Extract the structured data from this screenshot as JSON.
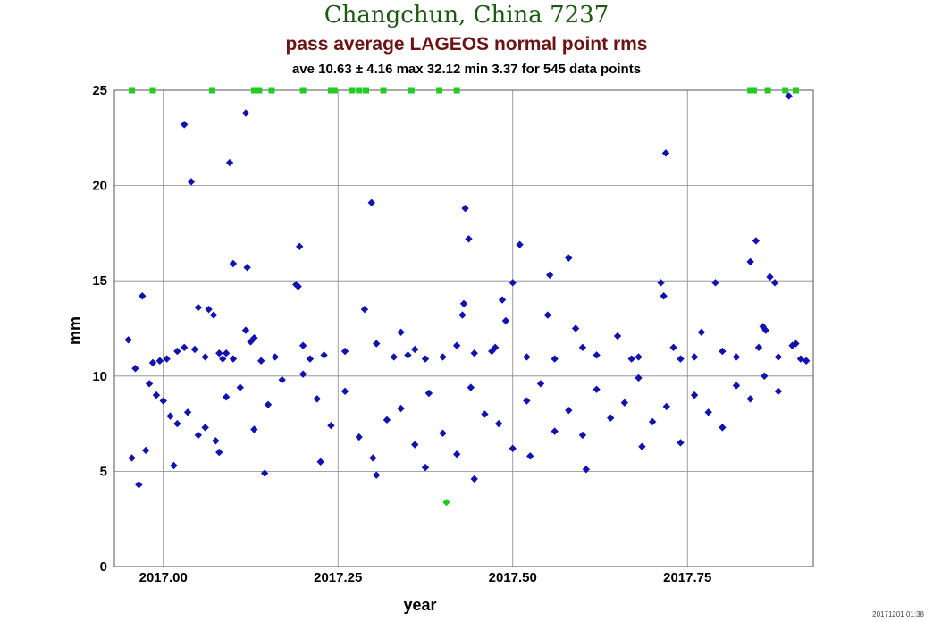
{
  "chart_data": {
    "type": "scatter",
    "title": "Changchun, China 7237",
    "subtitle": "pass average LAGEOS normal point rms",
    "stats": "ave 10.63 ± 4.16 max 32.12 min 3.37 for 545 data points",
    "xlabel": "year",
    "ylabel": "mm",
    "xlim": [
      2016.93,
      2017.93
    ],
    "ylim": [
      0,
      25
    ],
    "x_ticks": [
      "2017.00",
      "2017.25",
      "2017.50",
      "2017.75"
    ],
    "y_ticks": [
      "0",
      "5",
      "10",
      "15",
      "20",
      "25"
    ],
    "grid": true,
    "timestamp": "20171201 01:38",
    "colors": {
      "points": "#1212b0",
      "offscale": "#22cc22",
      "title": "#1c5a12",
      "subtitle": "#6b1414",
      "grid": "#888888"
    },
    "series": [
      {
        "marker": "diamond",
        "points": [
          [
            2016.95,
            11.9
          ],
          [
            2016.97,
            14.2
          ],
          [
            2016.985,
            10.7
          ],
          [
            2016.995,
            10.8
          ],
          [
            2017.005,
            10.9
          ],
          [
            2017.02,
            11.3
          ],
          [
            2017.03,
            11.5
          ],
          [
            2017.05,
            13.6
          ],
          [
            2017.065,
            13.5
          ],
          [
            2017.072,
            13.2
          ],
          [
            2017.045,
            11.4
          ],
          [
            2017.06,
            11.0
          ],
          [
            2017.03,
            23.2
          ],
          [
            2017.04,
            20.2
          ],
          [
            2017.08,
            11.2
          ],
          [
            2017.085,
            10.9
          ],
          [
            2017.095,
            21.2
          ],
          [
            2017.1,
            15.9
          ],
          [
            2017.118,
            23.8
          ],
          [
            2017.12,
            15.7
          ],
          [
            2017.125,
            11.8
          ],
          [
            2017.13,
            12.0
          ],
          [
            2017.118,
            12.4
          ],
          [
            2017.09,
            11.2
          ],
          [
            2017.1,
            10.9
          ],
          [
            2017.14,
            10.8
          ],
          [
            2017.16,
            11.0
          ],
          [
            2017.19,
            14.8
          ],
          [
            2017.193,
            14.7
          ],
          [
            2017.195,
            16.8
          ],
          [
            2017.2,
            11.6
          ],
          [
            2017.21,
            10.9
          ],
          [
            2017.23,
            11.1
          ],
          [
            2017.26,
            11.3
          ],
          [
            2017.288,
            13.5
          ],
          [
            2017.298,
            19.1
          ],
          [
            2017.305,
            11.7
          ],
          [
            2017.33,
            11.0
          ],
          [
            2017.34,
            12.3
          ],
          [
            2017.35,
            11.1
          ],
          [
            2017.36,
            11.4
          ],
          [
            2017.375,
            10.9
          ],
          [
            2017.4,
            11.0
          ],
          [
            2017.42,
            11.6
          ],
          [
            2017.428,
            13.2
          ],
          [
            2017.43,
            13.8
          ],
          [
            2017.432,
            18.8
          ],
          [
            2017.437,
            17.2
          ],
          [
            2017.445,
            11.2
          ],
          [
            2017.47,
            11.3
          ],
          [
            2017.475,
            11.5
          ],
          [
            2017.485,
            14.0
          ],
          [
            2017.49,
            12.9
          ],
          [
            2017.5,
            14.9
          ],
          [
            2017.51,
            16.9
          ],
          [
            2017.52,
            11.0
          ],
          [
            2017.55,
            13.2
          ],
          [
            2017.553,
            15.3
          ],
          [
            2017.56,
            10.9
          ],
          [
            2017.58,
            16.2
          ],
          [
            2017.59,
            12.5
          ],
          [
            2017.6,
            11.5
          ],
          [
            2017.62,
            11.1
          ],
          [
            2017.65,
            12.1
          ],
          [
            2017.67,
            10.9
          ],
          [
            2017.68,
            11.0
          ],
          [
            2017.712,
            14.9
          ],
          [
            2017.716,
            14.2
          ],
          [
            2017.719,
            21.7
          ],
          [
            2017.73,
            11.5
          ],
          [
            2017.74,
            10.9
          ],
          [
            2017.76,
            11.0
          ],
          [
            2017.77,
            12.3
          ],
          [
            2017.79,
            14.9
          ],
          [
            2017.8,
            11.3
          ],
          [
            2017.82,
            11.0
          ],
          [
            2017.84,
            16.0
          ],
          [
            2017.848,
            17.1
          ],
          [
            2017.852,
            11.5
          ],
          [
            2017.858,
            12.6
          ],
          [
            2017.862,
            12.4
          ],
          [
            2017.868,
            15.2
          ],
          [
            2017.875,
            14.9
          ],
          [
            2017.88,
            11.0
          ],
          [
            2017.895,
            24.7
          ],
          [
            2017.9,
            11.6
          ],
          [
            2017.905,
            11.7
          ],
          [
            2017.912,
            10.9
          ],
          [
            2017.92,
            10.8
          ],
          [
            2016.96,
            10.4
          ],
          [
            2016.98,
            9.6
          ],
          [
            2016.99,
            9.0
          ],
          [
            2017.0,
            8.7
          ],
          [
            2017.01,
            7.9
          ],
          [
            2017.02,
            7.5
          ],
          [
            2017.035,
            8.1
          ],
          [
            2017.05,
            6.9
          ],
          [
            2017.06,
            7.3
          ],
          [
            2017.075,
            6.6
          ],
          [
            2017.09,
            8.9
          ],
          [
            2017.11,
            9.4
          ],
          [
            2017.13,
            7.2
          ],
          [
            2017.15,
            8.5
          ],
          [
            2017.17,
            9.8
          ],
          [
            2017.2,
            10.1
          ],
          [
            2017.22,
            8.8
          ],
          [
            2017.24,
            7.4
          ],
          [
            2017.26,
            9.2
          ],
          [
            2017.28,
            6.8
          ],
          [
            2017.3,
            5.7
          ],
          [
            2017.32,
            7.7
          ],
          [
            2017.34,
            8.3
          ],
          [
            2017.36,
            6.4
          ],
          [
            2017.38,
            9.1
          ],
          [
            2017.4,
            7.0
          ],
          [
            2017.42,
            5.9
          ],
          [
            2017.44,
            9.4
          ],
          [
            2017.46,
            8.0
          ],
          [
            2017.48,
            7.5
          ],
          [
            2017.5,
            6.2
          ],
          [
            2017.52,
            8.7
          ],
          [
            2017.54,
            9.6
          ],
          [
            2017.56,
            7.1
          ],
          [
            2017.58,
            8.2
          ],
          [
            2017.6,
            6.9
          ],
          [
            2017.62,
            9.3
          ],
          [
            2017.64,
            7.8
          ],
          [
            2017.66,
            8.6
          ],
          [
            2017.68,
            9.9
          ],
          [
            2017.7,
            7.6
          ],
          [
            2017.72,
            8.4
          ],
          [
            2017.74,
            6.5
          ],
          [
            2017.76,
            9.0
          ],
          [
            2017.78,
            8.1
          ],
          [
            2017.8,
            7.3
          ],
          [
            2017.82,
            9.5
          ],
          [
            2017.84,
            8.8
          ],
          [
            2017.86,
            10.0
          ],
          [
            2017.88,
            9.2
          ],
          [
            2016.955,
            5.7
          ],
          [
            2016.975,
            6.1
          ],
          [
            2017.015,
            5.3
          ],
          [
            2017.08,
            6.0
          ],
          [
            2017.145,
            4.9
          ],
          [
            2017.225,
            5.5
          ],
          [
            2017.305,
            4.8
          ],
          [
            2017.375,
            5.2
          ],
          [
            2017.445,
            4.6
          ],
          [
            2017.525,
            5.8
          ],
          [
            2017.605,
            5.1
          ],
          [
            2017.685,
            6.3
          ],
          [
            2016.965,
            4.3
          ]
        ]
      },
      {
        "name": "",
        "marker": "square",
        "note_value": "off scale",
        "points": [
          [
            2016.955,
            25
          ],
          [
            2016.985,
            25
          ],
          [
            2017.07,
            25
          ],
          [
            2017.13,
            25
          ],
          [
            2017.137,
            25
          ],
          [
            2017.155,
            25
          ],
          [
            2017.2,
            25
          ],
          [
            2017.24,
            25
          ],
          [
            2017.245,
            25
          ],
          [
            2017.27,
            25
          ],
          [
            2017.28,
            25
          ],
          [
            2017.29,
            25
          ],
          [
            2017.315,
            25
          ],
          [
            2017.355,
            25
          ],
          [
            2017.395,
            25
          ],
          [
            2017.42,
            25
          ],
          [
            2017.84,
            25
          ],
          [
            2017.845,
            25
          ],
          [
            2017.865,
            25
          ],
          [
            2017.89,
            25
          ],
          [
            2017.905,
            25
          ]
        ]
      },
      {
        "marker": "diamond-green",
        "points": [
          [
            2017.405,
            3.37
          ]
        ]
      }
    ]
  }
}
